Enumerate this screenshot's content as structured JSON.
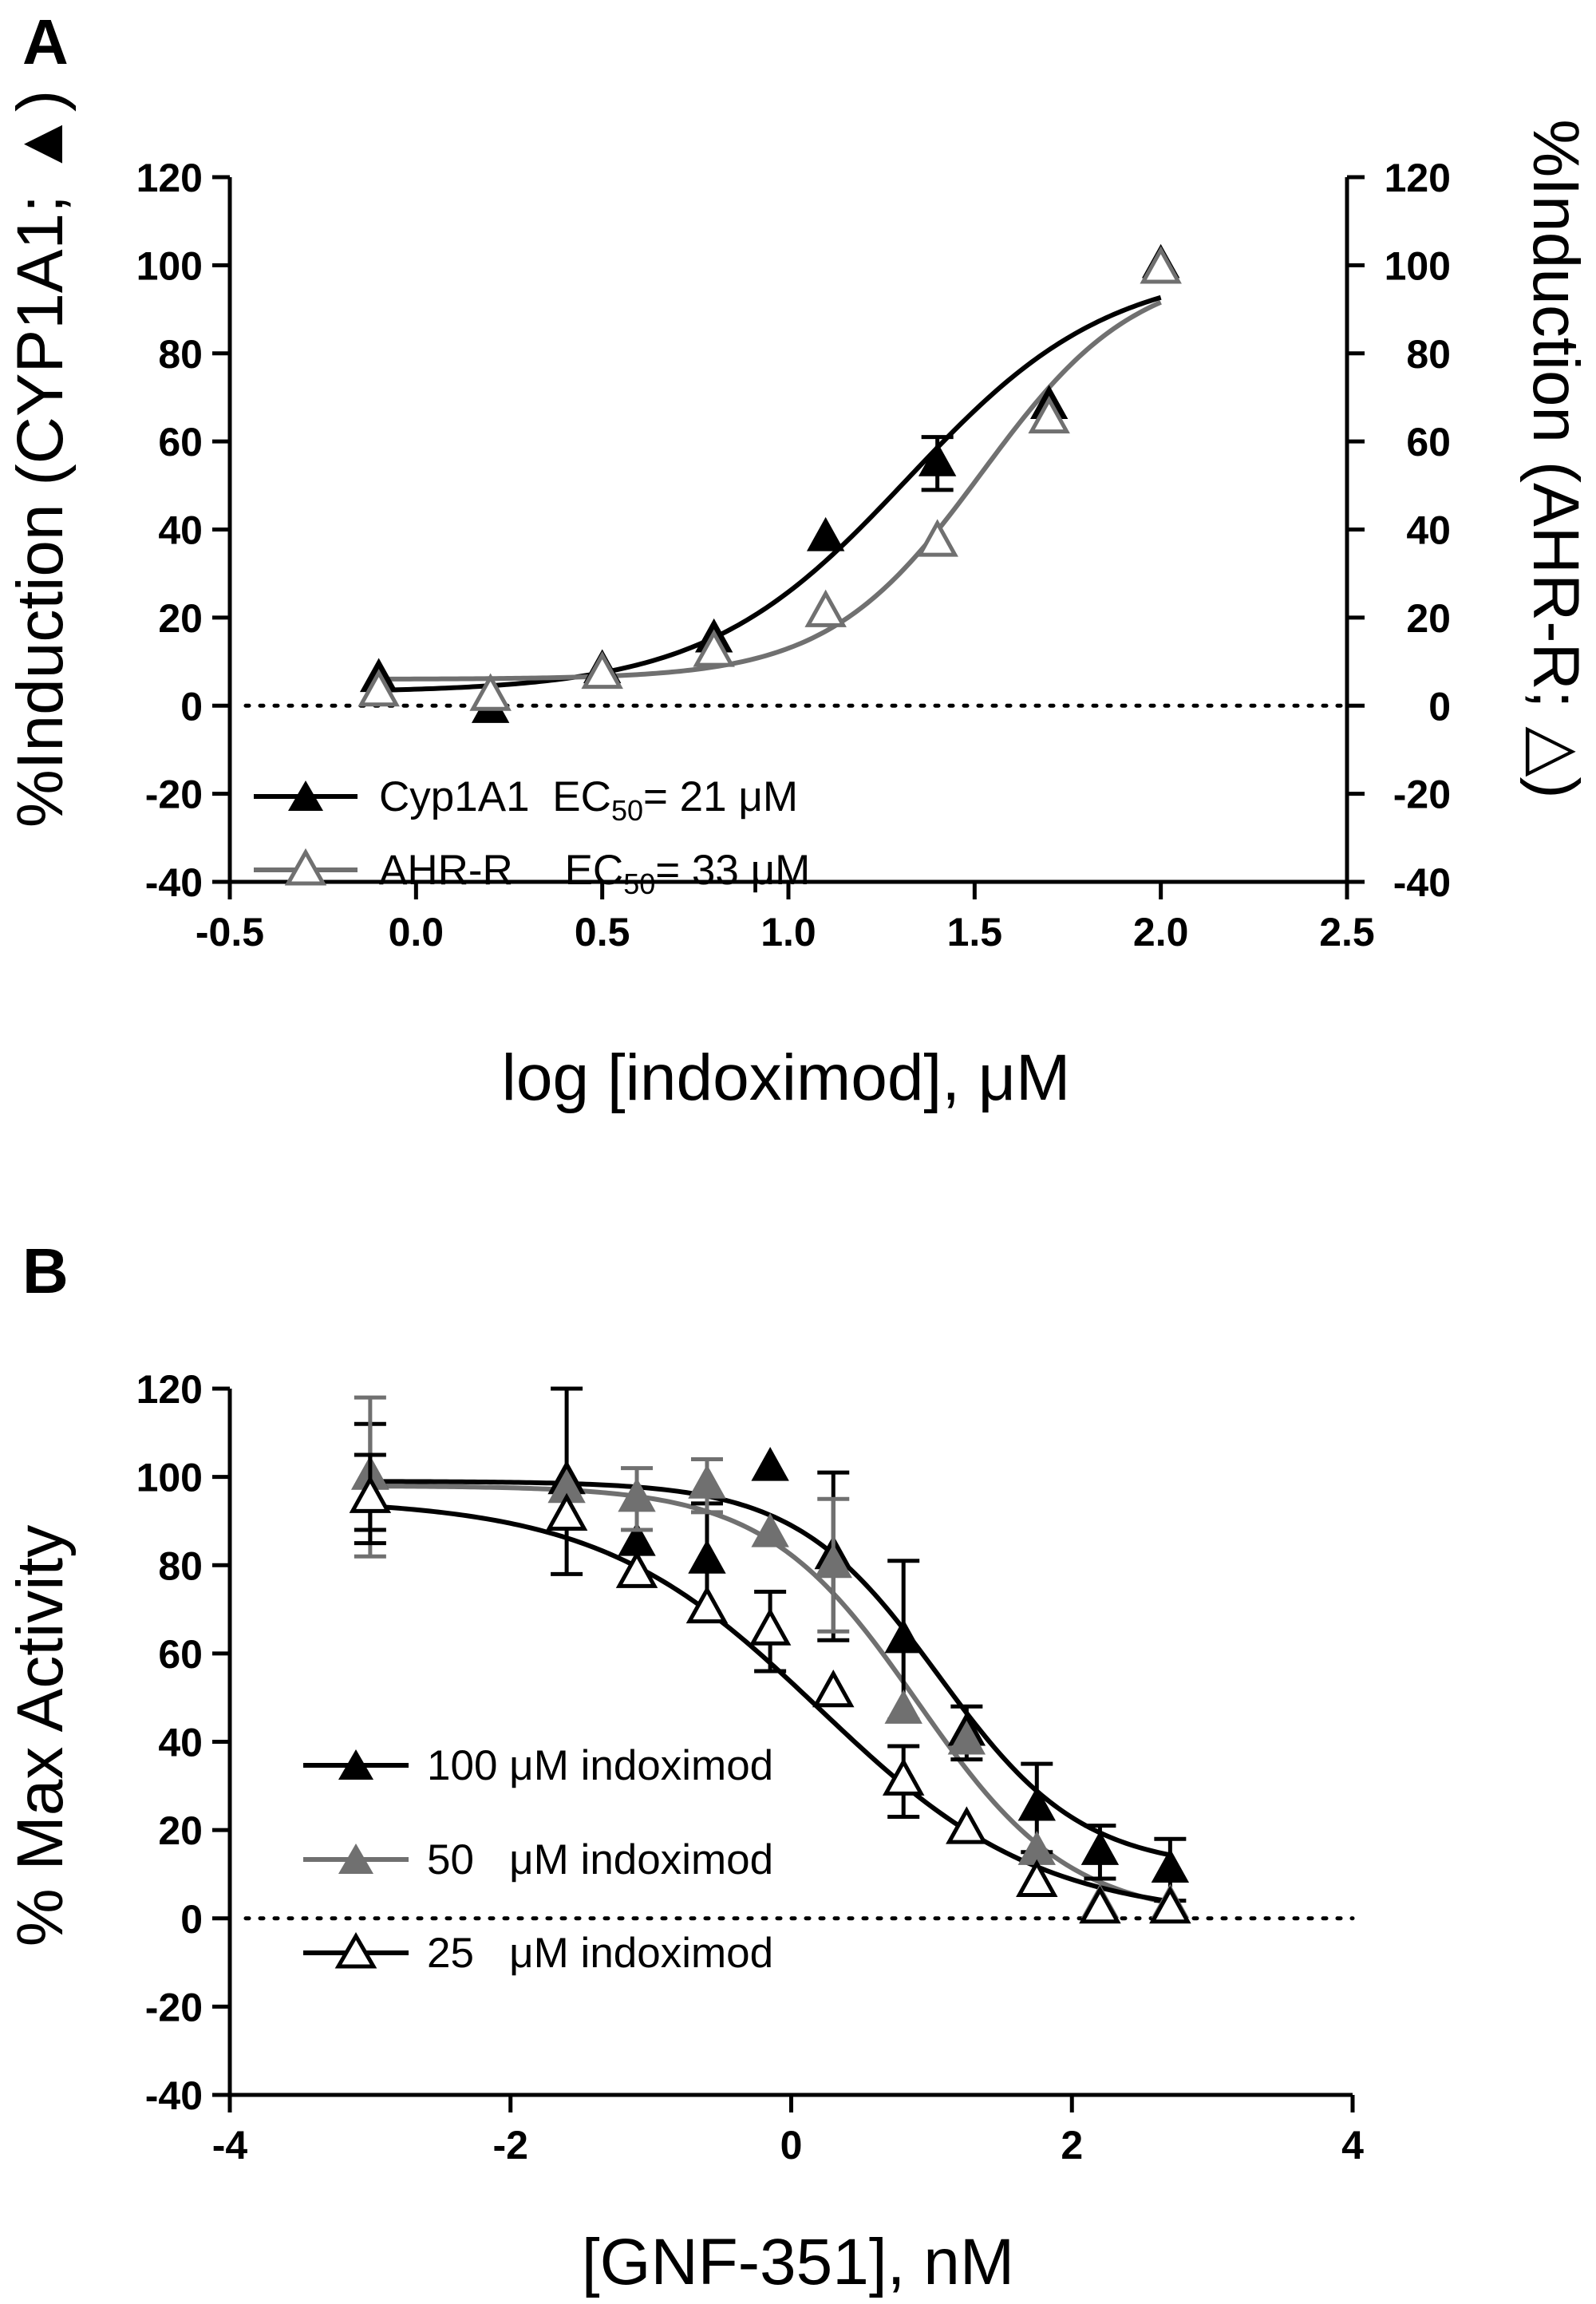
{
  "chart_data": [
    {
      "panel": "A",
      "type": "scatter",
      "xlabel": "log [indoximod], μM",
      "ylabel_left": "%Induction (CYP1A1; ▲)",
      "ylabel_right": "%Induction (AHR-R; △)",
      "xlim": [
        -0.5,
        2.5
      ],
      "ylim": [
        -40,
        120
      ],
      "x_ticks": [
        "-0.5",
        "0.0",
        "0.5",
        "1.0",
        "1.5",
        "2.0",
        "2.5"
      ],
      "y_ticks": [
        "-40",
        "-20",
        "0",
        "20",
        "40",
        "60",
        "80",
        "100",
        "120"
      ],
      "zero_line": "dotted",
      "grid": false,
      "legend_position": "bottom-left",
      "series": [
        {
          "name": "Cyp1A1",
          "ec50_label": "EC",
          "ec50_sub": "50",
          "ec50_value": "= 21 μM",
          "marker": "filled-triangle",
          "color": "#000000",
          "x": [
            -0.1,
            0.2,
            0.5,
            0.8,
            1.1,
            1.4,
            1.7,
            2.0
          ],
          "y": [
            6,
            -1,
            8,
            15,
            38,
            55,
            68,
            100
          ],
          "err": [
            0,
            0,
            0,
            0,
            0,
            6,
            0,
            0
          ],
          "fit": {
            "bottom": 3,
            "top": 100,
            "logEC50": 1.32,
            "hill": 1.6
          }
        },
        {
          "name": "AHR-R",
          "ec50_label": "EC",
          "ec50_sub": "50",
          "ec50_value": "= 33 μM",
          "marker": "open-triangle",
          "color": "#707070",
          "x": [
            -0.1,
            0.2,
            0.5,
            0.8,
            1.1,
            1.4,
            1.7,
            2.0
          ],
          "y": [
            3,
            2,
            7,
            12,
            21,
            37,
            65,
            99
          ],
          "err": [
            0,
            0,
            0,
            0,
            0,
            0,
            0,
            0
          ],
          "fit": {
            "bottom": 6,
            "top": 100,
            "logEC50": 1.52,
            "hill": 2.1
          }
        }
      ]
    },
    {
      "panel": "B",
      "type": "scatter",
      "xlabel": "[GNF-351], nM",
      "ylabel": "% Max Activity",
      "xlim": [
        -4,
        4
      ],
      "ylim": [
        -40,
        120
      ],
      "x_ticks": [
        "-4",
        "-2",
        "0",
        "2",
        "4"
      ],
      "y_ticks": [
        "-40",
        "-20",
        "0",
        "20",
        "40",
        "60",
        "80",
        "100",
        "120"
      ],
      "zero_line": "dotted",
      "grid": false,
      "legend_position": "bottom-left",
      "series": [
        {
          "name": "100 μM indoximod",
          "marker": "filled-triangle",
          "color": "#000000",
          "x": [
            -3,
            -1.6,
            -1.1,
            -0.6,
            -0.15,
            0.3,
            0.8,
            1.25,
            1.75,
            2.2,
            2.7
          ],
          "y": [
            100,
            99,
            85,
            81,
            102,
            82,
            63,
            42,
            25,
            15,
            11
          ],
          "err": [
            12,
            21,
            0,
            13,
            0,
            19,
            18,
            6,
            10,
            6,
            7
          ],
          "fit": {
            "bottom": 11,
            "top": 99,
            "logIC50": 1.05,
            "hill": -0.85
          }
        },
        {
          "name": "50   μM indoximod",
          "marker": "filled-triangle",
          "color": "#707070",
          "x": [
            -3,
            -1.6,
            -1.1,
            -0.6,
            -0.15,
            0.3,
            0.8,
            1.25,
            1.75,
            2.2,
            2.7
          ],
          "y": [
            100,
            97,
            95,
            98,
            87,
            80,
            47,
            40,
            15,
            3,
            3
          ],
          "err": [
            18,
            0,
            7,
            6,
            0,
            15,
            0,
            0,
            0,
            0,
            0
          ],
          "fit": {
            "bottom": 0,
            "top": 98,
            "logIC50": 0.9,
            "hill": -0.8
          }
        },
        {
          "name": "25   μM indoximod",
          "marker": "open-triangle",
          "color": "#000000",
          "x": [
            -3,
            -1.6,
            -1.1,
            -0.6,
            -0.15,
            0.3,
            0.8,
            1.25,
            1.75,
            2.2,
            2.7
          ],
          "y": [
            95,
            91,
            78,
            70,
            65,
            51,
            31,
            20,
            8,
            2,
            2
          ],
          "err": [
            10,
            0,
            0,
            0,
            9,
            0,
            8,
            0,
            0,
            0,
            0
          ],
          "fit": {
            "bottom": 0,
            "top": 95,
            "logIC50": 0.2,
            "hill": -0.55
          }
        }
      ]
    }
  ]
}
